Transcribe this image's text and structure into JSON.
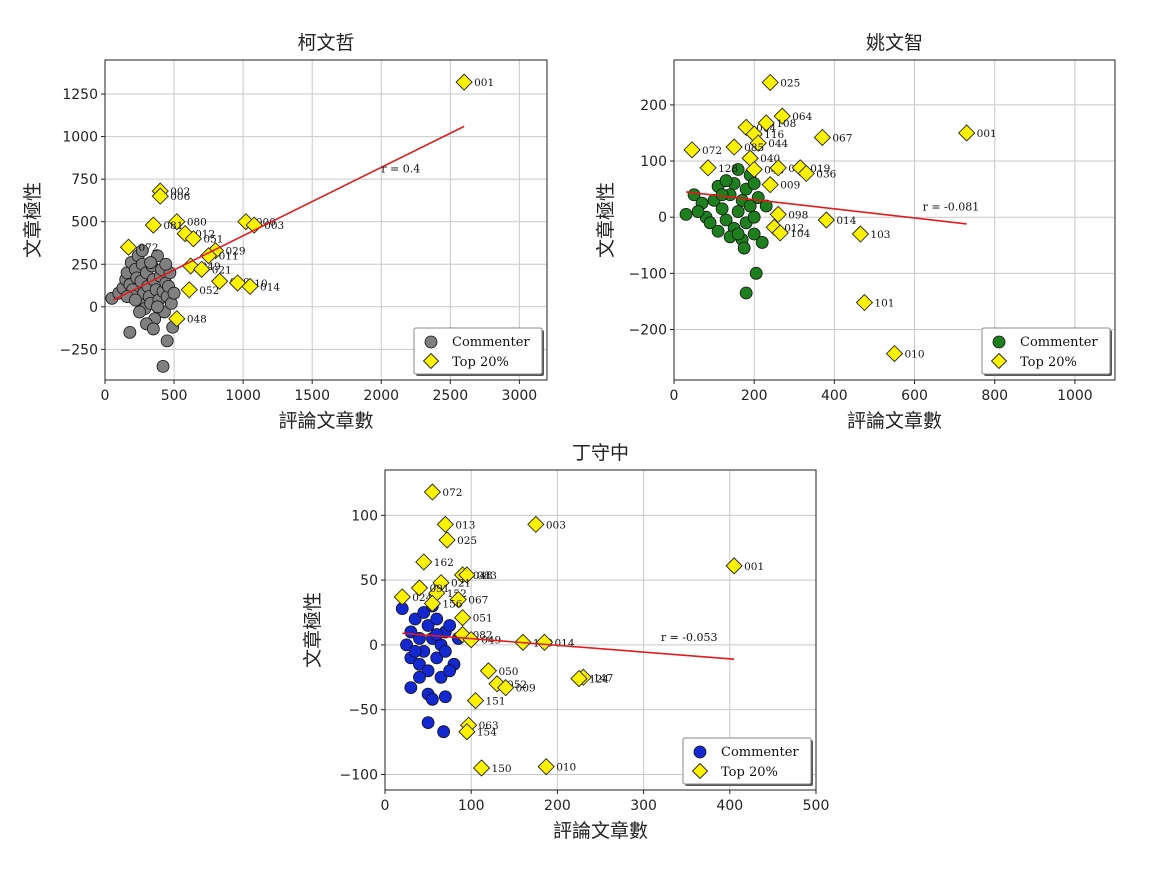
{
  "chart_data": [
    {
      "type": "scatter",
      "title": "柯文哲",
      "xlabel": "評論文章數",
      "ylabel": "文章極性",
      "xlim": [
        0,
        3200
      ],
      "ylim": [
        -430,
        1450
      ],
      "xticks": [
        0,
        500,
        1000,
        1500,
        2000,
        2500,
        3000
      ],
      "yticks": [
        -250,
        0,
        250,
        500,
        750,
        1000,
        1250
      ],
      "tick_labels_x": [
        "0",
        "500",
        "1000",
        "1500",
        "2000",
        "2500",
        "3000"
      ],
      "tick_labels_y": [
        "−250",
        "0",
        "250",
        "500",
        "750",
        "1000",
        "1250"
      ],
      "commenter_color": "#808080",
      "grid": true,
      "legend": [
        "Commenter",
        "Top 20%"
      ],
      "legend_position": "lower-right",
      "r_label": "r = 0.4",
      "r_label_pos": [
        2000,
        790
      ],
      "trend": [
        [
          60,
          40
        ],
        [
          2600,
          1060
        ]
      ],
      "commenters": [
        [
          50,
          50
        ],
        [
          100,
          80
        ],
        [
          130,
          110
        ],
        [
          150,
          160
        ],
        [
          160,
          200
        ],
        [
          180,
          130
        ],
        [
          190,
          260
        ],
        [
          200,
          100
        ],
        [
          210,
          60
        ],
        [
          220,
          220
        ],
        [
          230,
          170
        ],
        [
          240,
          300
        ],
        [
          250,
          40
        ],
        [
          260,
          150
        ],
        [
          270,
          250
        ],
        [
          280,
          80
        ],
        [
          290,
          -10
        ],
        [
          300,
          200
        ],
        [
          310,
          120
        ],
        [
          320,
          60
        ],
        [
          330,
          20
        ],
        [
          340,
          240
        ],
        [
          350,
          160
        ],
        [
          360,
          -70
        ],
        [
          370,
          100
        ],
        [
          380,
          300
        ],
        [
          390,
          40
        ],
        [
          400,
          180
        ],
        [
          410,
          220
        ],
        [
          420,
          90
        ],
        [
          430,
          -30
        ],
        [
          440,
          140
        ],
        [
          450,
          60
        ],
        [
          460,
          120
        ],
        [
          470,
          200
        ],
        [
          480,
          20
        ],
        [
          490,
          -120
        ],
        [
          500,
          80
        ],
        [
          180,
          -150
        ],
        [
          250,
          -30
        ],
        [
          300,
          -100
        ],
        [
          350,
          -130
        ],
        [
          420,
          -350
        ],
        [
          450,
          -200
        ],
        [
          380,
          0
        ],
        [
          270,
          330
        ],
        [
          160,
          60
        ],
        [
          220,
          40
        ],
        [
          330,
          260
        ],
        [
          440,
          250
        ]
      ],
      "top": [
        {
          "x": 2600,
          "y": 1320,
          "label": "001"
        },
        {
          "x": 400,
          "y": 680,
          "label": "002"
        },
        {
          "x": 400,
          "y": 650,
          "label": "006"
        },
        {
          "x": 520,
          "y": 500,
          "label": "080"
        },
        {
          "x": 1020,
          "y": 500,
          "label": "000"
        },
        {
          "x": 1080,
          "y": 480,
          "label": "003"
        },
        {
          "x": 350,
          "y": 480,
          "label": "081"
        },
        {
          "x": 580,
          "y": 430,
          "label": "012"
        },
        {
          "x": 640,
          "y": 400,
          "label": "051"
        },
        {
          "x": 170,
          "y": 350,
          "label": "072"
        },
        {
          "x": 800,
          "y": 330,
          "label": "029"
        },
        {
          "x": 750,
          "y": 300,
          "label": "011"
        },
        {
          "x": 620,
          "y": 240,
          "label": "049"
        },
        {
          "x": 700,
          "y": 220,
          "label": "021"
        },
        {
          "x": 830,
          "y": 150,
          "label": "050"
        },
        {
          "x": 960,
          "y": 140,
          "label": "010"
        },
        {
          "x": 1050,
          "y": 120,
          "label": "014"
        },
        {
          "x": 610,
          "y": 100,
          "label": "052"
        },
        {
          "x": 520,
          "y": -70,
          "label": "048"
        }
      ]
    },
    {
      "type": "scatter",
      "title": "姚文智",
      "xlabel": "評論文章數",
      "ylabel": "文章極性",
      "xlim": [
        0,
        1100
      ],
      "ylim": [
        -290,
        280
      ],
      "xticks": [
        0,
        200,
        400,
        600,
        800,
        1000
      ],
      "yticks": [
        -200,
        -100,
        0,
        100,
        200
      ],
      "tick_labels_x": [
        "0",
        "200",
        "400",
        "600",
        "800",
        "1000"
      ],
      "tick_labels_y": [
        "−200",
        "−100",
        "0",
        "100",
        "200"
      ],
      "commenter_color": "#1e7f1e",
      "grid": true,
      "legend": [
        "Commenter",
        "Top 20%"
      ],
      "legend_position": "lower-right",
      "r_label": "r = -0.081",
      "r_label_pos": [
        620,
        12
      ],
      "trend": [
        [
          30,
          45
        ],
        [
          730,
          -12
        ]
      ],
      "commenters": [
        [
          30,
          5
        ],
        [
          50,
          40
        ],
        [
          70,
          25
        ],
        [
          80,
          0
        ],
        [
          90,
          -10
        ],
        [
          100,
          30
        ],
        [
          110,
          55
        ],
        [
          120,
          15
        ],
        [
          130,
          -5
        ],
        [
          140,
          40
        ],
        [
          150,
          60
        ],
        [
          150,
          -20
        ],
        [
          160,
          10
        ],
        [
          170,
          30
        ],
        [
          170,
          -40
        ],
        [
          180,
          -10
        ],
        [
          180,
          50
        ],
        [
          190,
          20
        ],
        [
          200,
          0
        ],
        [
          200,
          -30
        ],
        [
          210,
          35
        ],
        [
          220,
          -45
        ],
        [
          110,
          -25
        ],
        [
          130,
          65
        ],
        [
          160,
          85
        ],
        [
          175,
          -55
        ],
        [
          190,
          75
        ],
        [
          205,
          -100
        ],
        [
          180,
          -135
        ],
        [
          60,
          10
        ],
        [
          140,
          -35
        ],
        [
          160,
          -30
        ],
        [
          200,
          60
        ],
        [
          230,
          20
        ],
        [
          120,
          40
        ]
      ],
      "top": [
        {
          "x": 240,
          "y": 240,
          "label": "025"
        },
        {
          "x": 730,
          "y": 150,
          "label": "001"
        },
        {
          "x": 270,
          "y": 180,
          "label": "064"
        },
        {
          "x": 180,
          "y": 160,
          "label": "004"
        },
        {
          "x": 230,
          "y": 168,
          "label": "108"
        },
        {
          "x": 200,
          "y": 148,
          "label": "116"
        },
        {
          "x": 210,
          "y": 132,
          "label": "044"
        },
        {
          "x": 370,
          "y": 142,
          "label": "067"
        },
        {
          "x": 45,
          "y": 120,
          "label": "072"
        },
        {
          "x": 150,
          "y": 125,
          "label": "085"
        },
        {
          "x": 190,
          "y": 105,
          "label": "040"
        },
        {
          "x": 85,
          "y": 88,
          "label": "128"
        },
        {
          "x": 200,
          "y": 85,
          "label": "043"
        },
        {
          "x": 260,
          "y": 88,
          "label": "051"
        },
        {
          "x": 315,
          "y": 88,
          "label": "019"
        },
        {
          "x": 330,
          "y": 78,
          "label": "036"
        },
        {
          "x": 240,
          "y": 58,
          "label": "009"
        },
        {
          "x": 260,
          "y": 5,
          "label": "098"
        },
        {
          "x": 380,
          "y": -5,
          "label": "014"
        },
        {
          "x": 250,
          "y": -18,
          "label": "012"
        },
        {
          "x": 265,
          "y": -28,
          "label": "104"
        },
        {
          "x": 465,
          "y": -30,
          "label": "103"
        },
        {
          "x": 475,
          "y": -152,
          "label": "101"
        },
        {
          "x": 550,
          "y": -243,
          "label": "010"
        }
      ]
    },
    {
      "type": "scatter",
      "title": "丁守中",
      "xlabel": "評論文章數",
      "ylabel": "文章極性",
      "xlim": [
        0,
        500
      ],
      "ylim": [
        -112,
        135
      ],
      "xticks": [
        0,
        100,
        200,
        300,
        400,
        500
      ],
      "yticks": [
        -100,
        -50,
        0,
        50,
        100
      ],
      "tick_labels_x": [
        "0",
        "100",
        "200",
        "300",
        "400",
        "500"
      ],
      "tick_labels_y": [
        "−100",
        "−50",
        "0",
        "50",
        "100"
      ],
      "commenter_color": "#1428d2",
      "grid": true,
      "legend": [
        "Commenter",
        "Top 20%"
      ],
      "legend_position": "lower-right",
      "r_label": "r = -0.053",
      "r_label_pos": [
        320,
        3
      ],
      "trend": [
        [
          20,
          9
        ],
        [
          405,
          -11
        ]
      ],
      "commenters": [
        [
          20,
          28
        ],
        [
          25,
          0
        ],
        [
          30,
          10
        ],
        [
          30,
          -10
        ],
        [
          35,
          20
        ],
        [
          40,
          5
        ],
        [
          40,
          -15
        ],
        [
          45,
          25
        ],
        [
          45,
          -5
        ],
        [
          50,
          15
        ],
        [
          50,
          -20
        ],
        [
          55,
          5
        ],
        [
          55,
          30
        ],
        [
          60,
          -10
        ],
        [
          60,
          20
        ],
        [
          65,
          0
        ],
        [
          65,
          -25
        ],
        [
          70,
          10
        ],
        [
          70,
          -5
        ],
        [
          75,
          15
        ],
        [
          80,
          -15
        ],
        [
          85,
          5
        ],
        [
          30,
          -33
        ],
        [
          50,
          -38
        ],
        [
          55,
          -42
        ],
        [
          70,
          -40
        ],
        [
          50,
          -60
        ],
        [
          68,
          -67
        ],
        [
          40,
          -25
        ],
        [
          60,
          8
        ],
        [
          75,
          -20
        ],
        [
          35,
          -5
        ]
      ],
      "top": [
        {
          "x": 55,
          "y": 118,
          "label": "072"
        },
        {
          "x": 70,
          "y": 93,
          "label": "013"
        },
        {
          "x": 175,
          "y": 93,
          "label": "003"
        },
        {
          "x": 72,
          "y": 81,
          "label": "025"
        },
        {
          "x": 45,
          "y": 64,
          "label": "162"
        },
        {
          "x": 405,
          "y": 61,
          "label": "001"
        },
        {
          "x": 90,
          "y": 54,
          "label": "048"
        },
        {
          "x": 95,
          "y": 54,
          "label": "083"
        },
        {
          "x": 65,
          "y": 48,
          "label": "021"
        },
        {
          "x": 60,
          "y": 40,
          "label": "152"
        },
        {
          "x": 40,
          "y": 44,
          "label": "091"
        },
        {
          "x": 20,
          "y": 37,
          "label": "024"
        },
        {
          "x": 85,
          "y": 35,
          "label": "067"
        },
        {
          "x": 55,
          "y": 32,
          "label": "156"
        },
        {
          "x": 90,
          "y": 21,
          "label": "051"
        },
        {
          "x": 90,
          "y": 8,
          "label": "082"
        },
        {
          "x": 100,
          "y": 4,
          "label": "049"
        },
        {
          "x": 160,
          "y": 2,
          "label": "103"
        },
        {
          "x": 185,
          "y": 2,
          "label": "014"
        },
        {
          "x": 120,
          "y": -20,
          "label": "050"
        },
        {
          "x": 130,
          "y": -30,
          "label": "052"
        },
        {
          "x": 140,
          "y": -33,
          "label": "009"
        },
        {
          "x": 230,
          "y": -25,
          "label": "147"
        },
        {
          "x": 225,
          "y": -26,
          "label": "124"
        },
        {
          "x": 105,
          "y": -43,
          "label": "151"
        },
        {
          "x": 97,
          "y": -62,
          "label": "063"
        },
        {
          "x": 95,
          "y": -67,
          "label": "154"
        },
        {
          "x": 112,
          "y": -95,
          "label": "150"
        },
        {
          "x": 187,
          "y": -94,
          "label": "010"
        }
      ]
    }
  ]
}
